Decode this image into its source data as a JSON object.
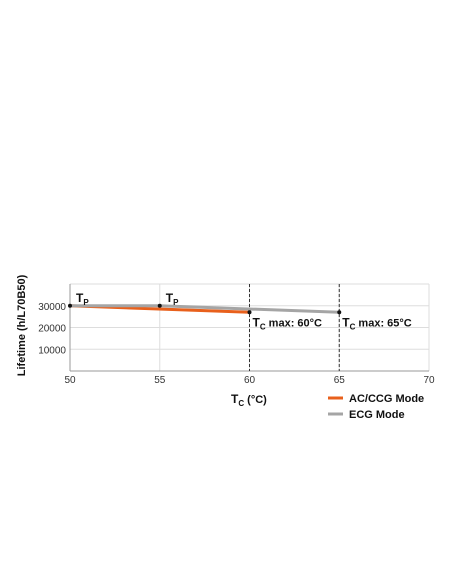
{
  "chart_data": {
    "type": "line",
    "y_label": "Lifetime (h/L70B50)",
    "x_label": {
      "main": "T",
      "sub": "C",
      "suffix": " (°C)"
    },
    "xlim": [
      50,
      70
    ],
    "xticks": [
      50,
      55,
      60,
      65,
      70
    ],
    "ylim": [
      0,
      40000
    ],
    "yticks": [
      10000,
      20000,
      30000
    ],
    "grid": true,
    "legend": "bottom-right",
    "series": [
      {
        "name": "AC/CCG Mode",
        "color": "#e8601c",
        "x": [
          50,
          60
        ],
        "values": [
          30000,
          27000
        ]
      },
      {
        "name": "ECG Mode",
        "color": "#a5a5a5",
        "x": [
          50,
          55,
          65
        ],
        "values": [
          30000,
          30000,
          27000
        ]
      }
    ],
    "annotations": [
      {
        "x": 50,
        "y": 30000,
        "text": "T",
        "sub": "P"
      },
      {
        "x": 55,
        "y": 30000,
        "text": "T",
        "sub": "P"
      },
      {
        "x": 60,
        "y": 27000,
        "text": "T",
        "sub": "C",
        "suffix": " max: 60°C"
      },
      {
        "x": 65,
        "y": 27000,
        "text": "T",
        "sub": "C",
        "suffix": " max: 65°C"
      }
    ]
  }
}
